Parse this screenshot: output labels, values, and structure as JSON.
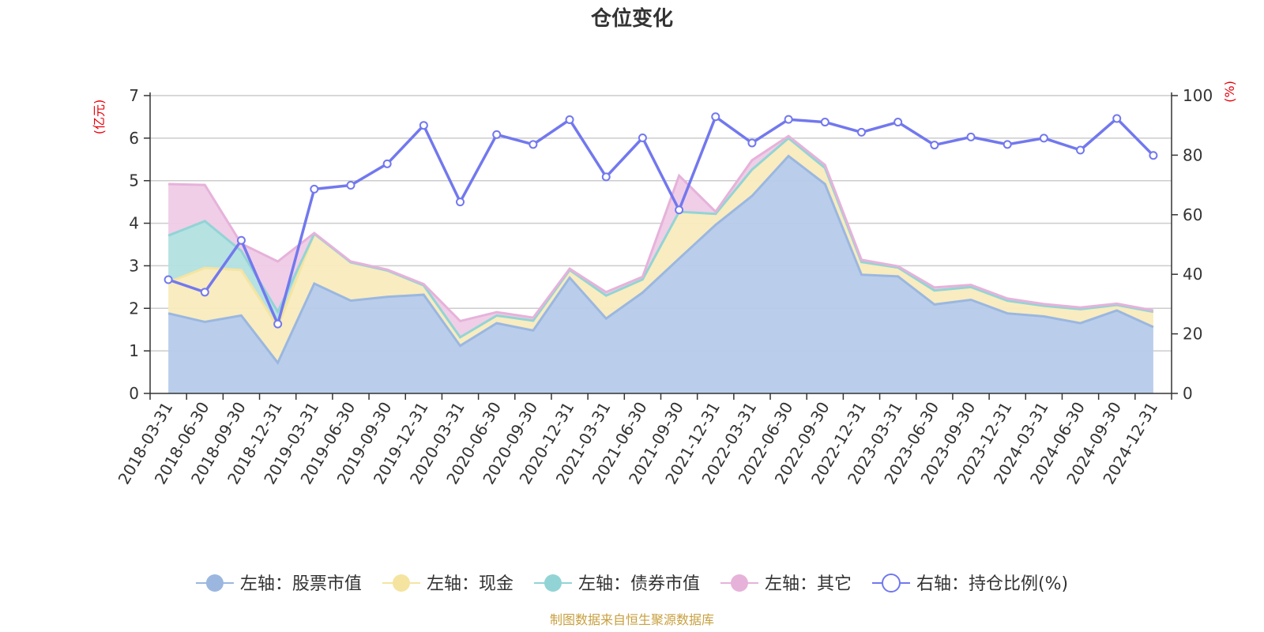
{
  "chart_data": {
    "type": "area",
    "title": "仓位变化",
    "left_axis": {
      "unit": "(亿元)",
      "ylim": [
        0,
        7
      ],
      "ticks": [
        "0",
        "1",
        "2",
        "3",
        "4",
        "5",
        "6",
        "7"
      ]
    },
    "right_axis": {
      "unit": "(%)",
      "ylim": [
        0,
        100
      ],
      "ticks": [
        "0",
        "20",
        "40",
        "60",
        "80",
        "100"
      ]
    },
    "categories": [
      "2018-03-31",
      "2018-06-30",
      "2018-09-30",
      "2018-12-31",
      "2019-03-31",
      "2019-06-30",
      "2019-09-30",
      "2019-12-31",
      "2020-03-31",
      "2020-06-30",
      "2020-09-30",
      "2020-12-31",
      "2021-03-31",
      "2021-06-30",
      "2021-09-30",
      "2021-12-31",
      "2022-03-31",
      "2022-06-30",
      "2022-09-30",
      "2022-12-31",
      "2023-03-31",
      "2023-06-30",
      "2023-09-30",
      "2023-12-31",
      "2024-03-31",
      "2024-06-30",
      "2024-09-30",
      "2024-12-31"
    ],
    "stacked_series": [
      {
        "name": "左轴：股票市值",
        "color": "#9bb7e0",
        "fill": "#b6cbea",
        "values": [
          1.88,
          1.68,
          1.83,
          0.72,
          2.58,
          2.18,
          2.27,
          2.32,
          1.12,
          1.65,
          1.48,
          2.72,
          1.76,
          2.37,
          3.17,
          3.96,
          4.64,
          5.58,
          4.92,
          2.79,
          2.75,
          2.09,
          2.2,
          1.88,
          1.81,
          1.65,
          1.95,
          1.56
        ]
      },
      {
        "name": "左轴：现金",
        "color": "#f5e4a0",
        "fill": "#f8ebbd",
        "values": [
          0.73,
          1.27,
          1.07,
          0.85,
          1.17,
          0.9,
          0.62,
          0.22,
          0.2,
          0.18,
          0.23,
          0.18,
          0.54,
          0.31,
          1.1,
          0.26,
          0.62,
          0.42,
          0.38,
          0.3,
          0.21,
          0.33,
          0.3,
          0.3,
          0.25,
          0.33,
          0.13,
          0.36
        ]
      },
      {
        "name": "左轴：债券市值",
        "color": "#92d4d6",
        "fill": "#b2e0e0",
        "values": [
          1.1,
          1.1,
          0.45,
          0.35,
          0,
          0,
          0,
          0,
          0,
          0,
          0,
          0,
          0,
          0,
          0,
          0,
          0,
          0,
          0,
          0,
          0,
          0,
          0,
          0,
          0,
          0,
          0,
          0
        ]
      },
      {
        "name": "左轴：其它",
        "color": "#e6b2da",
        "fill": "#efcbe6",
        "values": [
          1.21,
          0.85,
          0.17,
          1.18,
          0.02,
          0.02,
          0.02,
          0.03,
          0.38,
          0.08,
          0.07,
          0.03,
          0.08,
          0.06,
          0.85,
          0.05,
          0.22,
          0.05,
          0.07,
          0.05,
          0.03,
          0.07,
          0.05,
          0.05,
          0.04,
          0.04,
          0.03,
          0.03
        ]
      }
    ],
    "line_series": {
      "name": "右轴：持仓比例(%)",
      "color": "#7278ee",
      "values": [
        38.2,
        34.0,
        51.4,
        23.3,
        68.6,
        69.9,
        77.1,
        90.0,
        64.3,
        86.9,
        83.6,
        91.9,
        72.7,
        85.8,
        61.6,
        92.9,
        84.1,
        92.0,
        91.1,
        87.7,
        91.1,
        83.4,
        86.1,
        83.6,
        85.7,
        81.7,
        92.3,
        79.9
      ]
    },
    "legend_position": "bottom-center",
    "grid": true
  },
  "source_note": "制图数据来自恒生聚源数据库"
}
